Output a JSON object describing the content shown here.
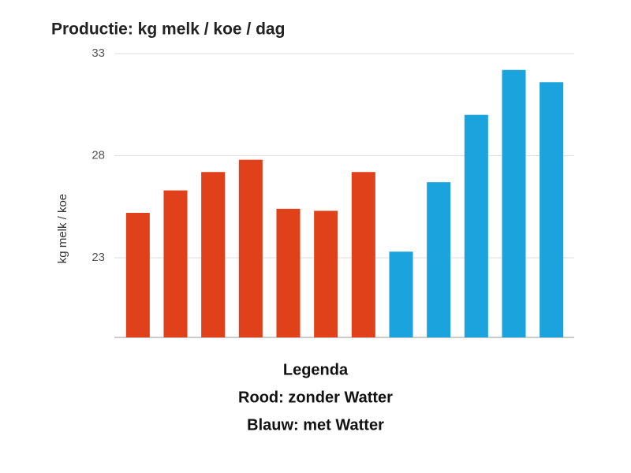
{
  "chart_data": {
    "type": "bar",
    "title": "Productie: kg melk / koe / dag",
    "y_label": "kg melk / koe",
    "categories": [
      null,
      null,
      null,
      null,
      null,
      null,
      null,
      null,
      null,
      null,
      null,
      null
    ],
    "values": [
      25.2,
      26.3,
      27.2,
      27.8,
      25.4,
      25.3,
      27.2,
      23.3,
      26.7,
      30.0,
      32.2,
      31.6
    ],
    "colors": [
      "#e0401a",
      "#e0401a",
      "#e0401a",
      "#e0401a",
      "#e0401a",
      "#e0401a",
      "#e0401a",
      "#1aa3dc",
      "#1aa3dc",
      "#1aa3dc",
      "#1aa3dc",
      "#1aa3dc"
    ],
    "ylim": [
      19.1,
      33
    ],
    "yticks": [
      23,
      28,
      33
    ],
    "grid": true,
    "legend": {
      "title": "Legenda",
      "lines": [
        "Rood: zonder Watter",
        "Blauw: met Watter"
      ]
    }
  }
}
